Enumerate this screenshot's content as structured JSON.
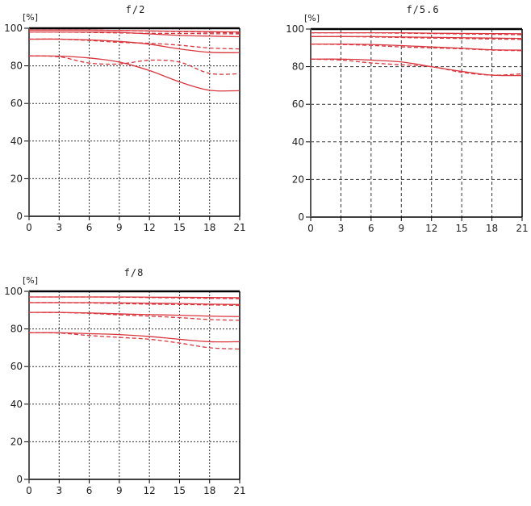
{
  "colors": {
    "curve": "#d9363e",
    "axis": "#000000",
    "grid": "#333333",
    "text": "#222222"
  },
  "chart_data": [
    {
      "type": "line",
      "title": "f/2",
      "ylabel": "[%]",
      "xlabel": "",
      "ylim": [
        0,
        100
      ],
      "xlim": [
        0,
        21
      ],
      "yticks": [
        0,
        20,
        40,
        60,
        80,
        100
      ],
      "xticks": [
        0,
        3,
        6,
        9,
        12,
        15,
        18,
        21
      ],
      "grid": true,
      "x": [
        0,
        3,
        6,
        9,
        12,
        15,
        18,
        21
      ],
      "series": [
        {
          "name": "solid-1",
          "style": "solid",
          "values": [
            99,
            99,
            99,
            98.8,
            98.6,
            98.4,
            98.2,
            98
          ]
        },
        {
          "name": "dashed-1",
          "style": "dashed",
          "values": [
            99,
            99,
            99,
            98.8,
            98.5,
            98.2,
            97.8,
            97.5
          ]
        },
        {
          "name": "solid-2",
          "style": "solid",
          "values": [
            98,
            98,
            98,
            97.8,
            97,
            96.2,
            95.8,
            95.5
          ]
        },
        {
          "name": "dashed-2",
          "style": "dashed",
          "values": [
            98,
            98,
            97.8,
            97.5,
            97.3,
            97.2,
            97.1,
            97
          ]
        },
        {
          "name": "solid-3",
          "style": "solid",
          "values": [
            94.2,
            94.2,
            93.8,
            93,
            91.5,
            89,
            87.2,
            87
          ]
        },
        {
          "name": "dashed-3",
          "style": "dashed",
          "values": [
            94.2,
            94.2,
            93.5,
            92.5,
            92,
            91,
            89.5,
            89
          ]
        },
        {
          "name": "solid-4",
          "style": "solid",
          "values": [
            85.3,
            85.2,
            84.2,
            82,
            77.5,
            71.5,
            67,
            66.8
          ]
        },
        {
          "name": "dashed-4",
          "style": "dashed",
          "values": [
            85.3,
            84.8,
            81.5,
            81,
            83,
            82,
            76,
            75.8
          ]
        }
      ]
    },
    {
      "type": "line",
      "title": "f/5.6",
      "ylabel": "[%]",
      "xlabel": "",
      "ylim": [
        0,
        100
      ],
      "xlim": [
        0,
        21
      ],
      "yticks": [
        0,
        20,
        40,
        60,
        80,
        100
      ],
      "xticks": [
        0,
        3,
        6,
        9,
        12,
        15,
        18,
        21
      ],
      "grid": true,
      "x": [
        0,
        3,
        6,
        9,
        12,
        15,
        18,
        21
      ],
      "series": [
        {
          "name": "solid-1",
          "style": "solid",
          "values": [
            98,
            98,
            98,
            98,
            97.8,
            97.7,
            97.6,
            97.5
          ]
        },
        {
          "name": "dashed-1",
          "style": "dashed",
          "values": [
            98,
            98,
            98,
            97.8,
            97.6,
            97.4,
            97.2,
            97
          ]
        },
        {
          "name": "solid-2",
          "style": "solid",
          "values": [
            96,
            96,
            96,
            95.8,
            95.6,
            95.4,
            95.2,
            95
          ]
        },
        {
          "name": "dashed-2",
          "style": "dashed",
          "values": [
            96,
            96,
            95.8,
            95.5,
            95.2,
            95,
            94.7,
            94.5
          ]
        },
        {
          "name": "solid-3",
          "style": "solid",
          "values": [
            92,
            92,
            91.8,
            91.2,
            90.5,
            89.8,
            89,
            88.8
          ]
        },
        {
          "name": "dashed-3",
          "style": "dashed",
          "values": [
            92,
            91.8,
            91.3,
            90.5,
            90,
            89.5,
            88.8,
            88.5
          ]
        },
        {
          "name": "solid-4",
          "style": "solid",
          "values": [
            84,
            84,
            83.5,
            82.5,
            80,
            77.5,
            75.5,
            75.3
          ]
        },
        {
          "name": "dashed-4",
          "style": "dashed",
          "values": [
            84,
            83.5,
            82,
            81,
            80,
            77,
            75.5,
            76.2
          ]
        }
      ]
    },
    {
      "type": "line",
      "title": "f/8",
      "ylabel": "[%]",
      "xlabel": "",
      "ylim": [
        0,
        100
      ],
      "xlim": [
        0,
        21
      ],
      "yticks": [
        0,
        20,
        40,
        60,
        80,
        100
      ],
      "xticks": [
        0,
        3,
        6,
        9,
        12,
        15,
        18,
        21
      ],
      "grid": true,
      "x": [
        0,
        3,
        6,
        9,
        12,
        15,
        18,
        21
      ],
      "series": [
        {
          "name": "solid-1",
          "style": "solid",
          "values": [
            97,
            97,
            97,
            97,
            96.9,
            96.8,
            96.7,
            96.6
          ]
        },
        {
          "name": "dashed-1",
          "style": "dashed",
          "values": [
            97,
            97,
            97,
            96.9,
            96.7,
            96.5,
            96.3,
            96.1
          ]
        },
        {
          "name": "solid-2",
          "style": "solid",
          "values": [
            94,
            94,
            94,
            93.9,
            93.7,
            93.5,
            93.2,
            93
          ]
        },
        {
          "name": "dashed-2",
          "style": "dashed",
          "values": [
            94,
            94,
            93.8,
            93.5,
            93.2,
            93,
            92.8,
            92.5
          ]
        },
        {
          "name": "solid-3",
          "style": "solid",
          "values": [
            88.8,
            88.8,
            88.5,
            88,
            87.6,
            87.3,
            86.8,
            86.6
          ]
        },
        {
          "name": "dashed-3",
          "style": "dashed",
          "values": [
            88.8,
            88.7,
            88.3,
            87.5,
            86.8,
            86,
            85,
            84.6
          ]
        },
        {
          "name": "solid-4",
          "style": "solid",
          "values": [
            78,
            78,
            77.5,
            77,
            76,
            74.5,
            73.2,
            73.2
          ]
        },
        {
          "name": "dashed-4",
          "style": "dashed",
          "values": [
            78,
            77.8,
            76.5,
            75.5,
            74.5,
            72.5,
            70,
            69.3
          ]
        }
      ]
    }
  ],
  "panels": [
    {
      "title": "f/2",
      "unit": "[%]"
    },
    {
      "title": "f/5.6",
      "unit": "[%]"
    },
    {
      "title": "f/8",
      "unit": "[%]"
    }
  ]
}
